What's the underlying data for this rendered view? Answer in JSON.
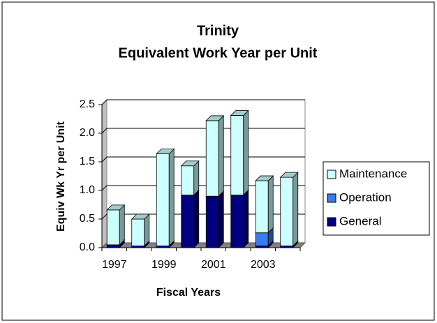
{
  "chart_data": {
    "type": "bar3d_stacked",
    "title": "Trinity",
    "subtitle": "Equivalent Work Year per Unit",
    "xlabel": "Fiscal Years",
    "ylabel": "Equiv Wk Yr per Unit",
    "categories": [
      "1997",
      null,
      "1999",
      null,
      "2001",
      null,
      "2003",
      null
    ],
    "series": [
      {
        "name": "General",
        "color": "#000080",
        "values": [
          0.05,
          0.03,
          0.03,
          0.92,
          0.9,
          0.92,
          0.03,
          0.03
        ]
      },
      {
        "name": "Operation",
        "color": "#3a7bf0",
        "values": [
          0,
          0,
          0,
          0,
          0,
          0,
          0.23,
          0
        ]
      },
      {
        "name": "Maintenance",
        "color": "#ccffff",
        "values": [
          0.61,
          0.47,
          1.61,
          0.51,
          1.32,
          1.39,
          0.91,
          1.2
        ]
      }
    ],
    "ylim": [
      0,
      2.5
    ],
    "yticks": [
      {
        "value": 0,
        "label": "0.0"
      },
      0.5,
      {
        "value": 1,
        "label": "1.0"
      },
      1.5,
      {
        "value": 2,
        "label": "2.0"
      },
      2.5
    ],
    "grid": true,
    "legend": "right"
  }
}
